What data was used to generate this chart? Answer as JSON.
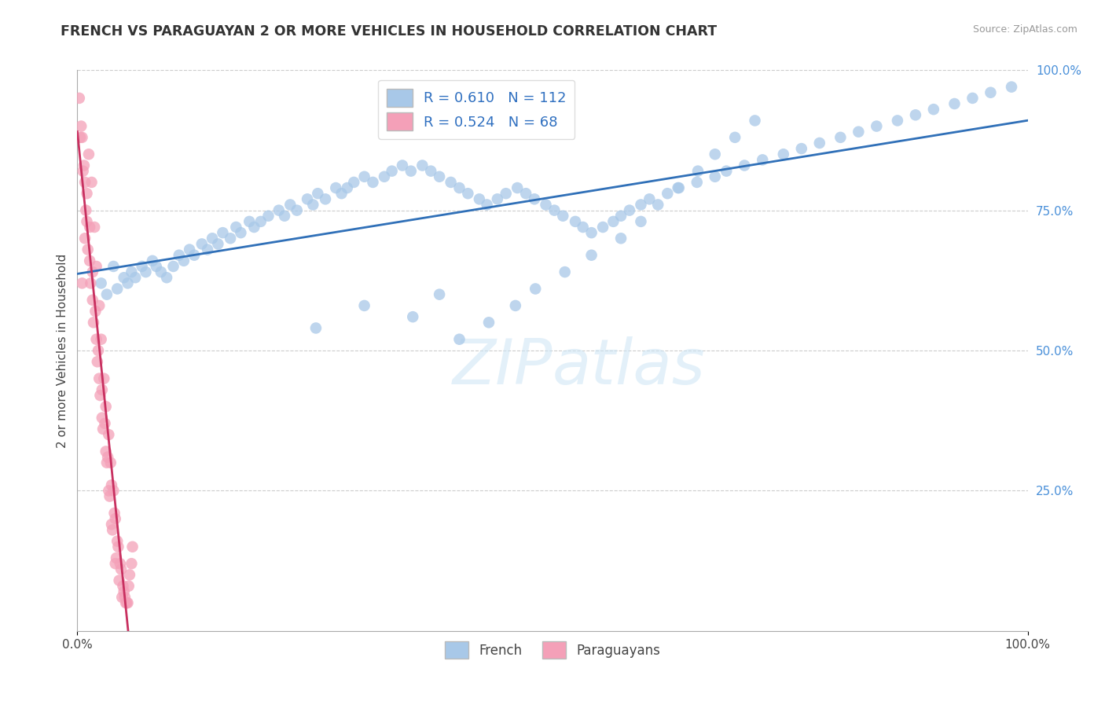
{
  "title": "FRENCH VS PARAGUAYAN 2 OR MORE VEHICLES IN HOUSEHOLD CORRELATION CHART",
  "source": "Source: ZipAtlas.com",
  "ylabel": "2 or more Vehicles in Household",
  "xlim": [
    0.0,
    100.0
  ],
  "ylim": [
    0.0,
    100.0
  ],
  "x_tick_labels": [
    "0.0%",
    "100.0%"
  ],
  "y_ticks_right": [
    25.0,
    50.0,
    75.0,
    100.0
  ],
  "y_tick_labels_right": [
    "25.0%",
    "50.0%",
    "75.0%",
    "100.0%"
  ],
  "french_R": 0.61,
  "french_N": 112,
  "paraguayan_R": 0.524,
  "paraguayan_N": 68,
  "french_color": "#a8c8e8",
  "paraguayan_color": "#f4a0b8",
  "french_line_color": "#3070b8",
  "paraguayan_line_color": "#c83060",
  "french_scatter_x": [
    2.5,
    3.1,
    3.8,
    4.2,
    4.9,
    5.3,
    5.7,
    6.1,
    6.8,
    7.2,
    7.9,
    8.3,
    8.8,
    9.4,
    10.1,
    10.7,
    11.2,
    11.8,
    12.3,
    13.1,
    13.7,
    14.2,
    14.8,
    15.3,
    16.1,
    16.7,
    17.2,
    18.1,
    18.6,
    19.3,
    20.1,
    21.2,
    21.8,
    22.4,
    23.1,
    24.2,
    24.8,
    25.3,
    26.1,
    27.2,
    27.8,
    28.4,
    29.1,
    30.2,
    31.1,
    32.3,
    33.1,
    34.2,
    35.1,
    36.3,
    37.2,
    38.1,
    39.3,
    40.2,
    41.1,
    42.3,
    43.1,
    44.2,
    45.1,
    46.3,
    47.2,
    48.1,
    49.3,
    50.2,
    51.1,
    52.4,
    53.2,
    54.1,
    55.3,
    56.4,
    57.2,
    58.1,
    59.3,
    60.2,
    62.1,
    63.3,
    65.2,
    67.1,
    68.3,
    70.2,
    72.1,
    74.3,
    76.2,
    78.1,
    80.3,
    82.2,
    84.1,
    86.3,
    88.2,
    90.1,
    92.3,
    94.2,
    96.1,
    98.3,
    30.2,
    25.1,
    35.3,
    38.1,
    40.2,
    43.3,
    46.1,
    48.2,
    51.3,
    54.1,
    57.2,
    59.3,
    61.1,
    63.2,
    65.3,
    67.1,
    69.2,
    71.3
  ],
  "french_scatter_y": [
    62,
    60,
    65,
    61,
    63,
    62,
    64,
    63,
    65,
    64,
    66,
    65,
    64,
    63,
    65,
    67,
    66,
    68,
    67,
    69,
    68,
    70,
    69,
    71,
    70,
    72,
    71,
    73,
    72,
    73,
    74,
    75,
    74,
    76,
    75,
    77,
    76,
    78,
    77,
    79,
    78,
    79,
    80,
    81,
    80,
    81,
    82,
    83,
    82,
    83,
    82,
    81,
    80,
    79,
    78,
    77,
    76,
    77,
    78,
    79,
    78,
    77,
    76,
    75,
    74,
    73,
    72,
    71,
    72,
    73,
    74,
    75,
    76,
    77,
    78,
    79,
    80,
    81,
    82,
    83,
    84,
    85,
    86,
    87,
    88,
    89,
    90,
    91,
    92,
    93,
    94,
    95,
    96,
    97,
    58,
    54,
    56,
    60,
    52,
    55,
    58,
    61,
    64,
    67,
    70,
    73,
    76,
    79,
    82,
    85,
    88,
    91
  ],
  "paraguayan_scatter_x": [
    0.5,
    0.8,
    1.0,
    1.2,
    1.5,
    1.8,
    2.0,
    2.3,
    2.5,
    2.8,
    3.0,
    3.3,
    3.5,
    3.8,
    4.0,
    4.3,
    4.5,
    4.8,
    5.0,
    5.3,
    5.5,
    5.8,
    0.3,
    0.6,
    0.9,
    1.1,
    1.4,
    1.7,
    2.1,
    2.4,
    2.7,
    3.1,
    3.4,
    3.7,
    4.1,
    4.4,
    4.7,
    5.1,
    5.4,
    5.7,
    0.4,
    0.7,
    1.3,
    1.6,
    1.9,
    2.2,
    2.6,
    2.9,
    3.2,
    3.6,
    3.9,
    4.2,
    4.6,
    4.9,
    5.2,
    0.2,
    0.5,
    0.8,
    1.0,
    1.3,
    1.6,
    2.0,
    2.3,
    2.6,
    3.0,
    3.3,
    3.6,
    4.0
  ],
  "paraguayan_scatter_y": [
    62,
    70,
    78,
    85,
    80,
    72,
    65,
    58,
    52,
    45,
    40,
    35,
    30,
    25,
    20,
    15,
    12,
    8,
    6,
    5,
    10,
    15,
    88,
    82,
    75,
    68,
    62,
    55,
    48,
    42,
    36,
    30,
    24,
    18,
    13,
    9,
    6,
    5,
    8,
    12,
    90,
    83,
    72,
    64,
    57,
    50,
    43,
    37,
    31,
    26,
    21,
    16,
    11,
    7,
    5,
    95,
    88,
    80,
    73,
    66,
    59,
    52,
    45,
    38,
    32,
    25,
    19,
    12
  ]
}
